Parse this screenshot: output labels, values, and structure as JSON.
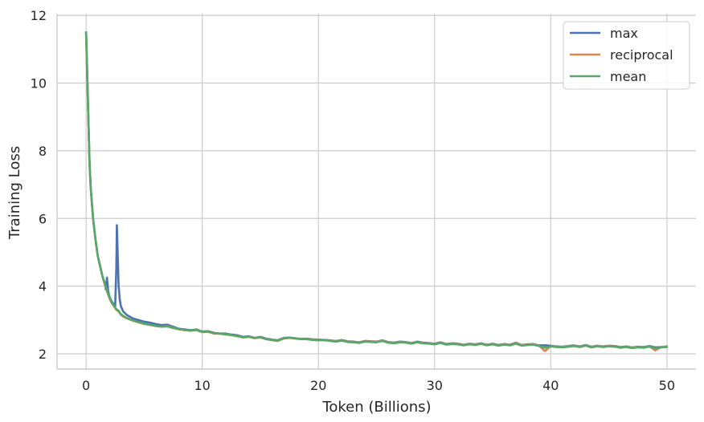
{
  "chart_data": {
    "type": "line",
    "title": "",
    "xlabel": "Token (Billions)",
    "ylabel": "Training Loss",
    "xlim": [
      -2.5,
      52.5
    ],
    "ylim": [
      1.55,
      12.05
    ],
    "xticks": [
      0,
      10,
      20,
      30,
      40,
      50
    ],
    "yticks": [
      2,
      4,
      6,
      8,
      10,
      12
    ],
    "grid": true,
    "legend_position": "top-right",
    "series": [
      {
        "name": "max",
        "color": "#4c72b0",
        "x": [
          0,
          0.1,
          0.2,
          0.3,
          0.4,
          0.6,
          0.8,
          1.0,
          1.2,
          1.4,
          1.6,
          1.7,
          1.8,
          1.9,
          2.0,
          2.2,
          2.4,
          2.5,
          2.6,
          2.65,
          2.7,
          2.8,
          2.9,
          3.0,
          3.2,
          3.5,
          4,
          4.5,
          5,
          5.5,
          6,
          6.5,
          7,
          7.5,
          8,
          8.5,
          9,
          9.5,
          10,
          10.5,
          11,
          11.5,
          12,
          12.5,
          13,
          13.5,
          14,
          14.5,
          15,
          15.5,
          16,
          16.5,
          17,
          17.5,
          18,
          18.5,
          19,
          19.5,
          20,
          20.5,
          21,
          21.5,
          22,
          22.5,
          23,
          23.5,
          24,
          24.5,
          25,
          25.5,
          26,
          26.5,
          27,
          27.5,
          28,
          28.5,
          29,
          29.5,
          30,
          30.5,
          31,
          31.5,
          32,
          32.5,
          33,
          33.5,
          34,
          34.5,
          35,
          35.5,
          36,
          36.5,
          37,
          37.5,
          38,
          38.5,
          39,
          39.5,
          40,
          40.5,
          41,
          41.5,
          42,
          42.5,
          43,
          43.5,
          44,
          44.5,
          45,
          45.5,
          46,
          46.5,
          47,
          47.5,
          48,
          48.5,
          49,
          49.5,
          50
        ],
        "y": [
          11.5,
          10.2,
          8.9,
          7.6,
          6.9,
          6.0,
          5.4,
          4.9,
          4.6,
          4.3,
          4.1,
          3.9,
          4.25,
          3.85,
          3.7,
          3.55,
          3.45,
          3.4,
          4.5,
          5.8,
          5.2,
          4.0,
          3.6,
          3.4,
          3.25,
          3.15,
          3.05,
          3.0,
          2.95,
          2.92,
          2.88,
          2.85,
          2.86,
          2.8,
          2.74,
          2.72,
          2.7,
          2.72,
          2.66,
          2.67,
          2.62,
          2.6,
          2.6,
          2.57,
          2.55,
          2.5,
          2.52,
          2.47,
          2.5,
          2.45,
          2.42,
          2.4,
          2.47,
          2.48,
          2.46,
          2.44,
          2.45,
          2.43,
          2.42,
          2.41,
          2.4,
          2.38,
          2.41,
          2.37,
          2.36,
          2.34,
          2.38,
          2.37,
          2.36,
          2.4,
          2.35,
          2.33,
          2.36,
          2.35,
          2.32,
          2.36,
          2.33,
          2.32,
          2.3,
          2.34,
          2.29,
          2.31,
          2.3,
          2.27,
          2.3,
          2.28,
          2.31,
          2.27,
          2.3,
          2.26,
          2.29,
          2.27,
          2.33,
          2.26,
          2.28,
          2.29,
          2.25,
          2.25,
          2.24,
          2.22,
          2.21,
          2.23,
          2.25,
          2.22,
          2.26,
          2.21,
          2.24,
          2.22,
          2.24,
          2.23,
          2.2,
          2.22,
          2.19,
          2.21,
          2.2,
          2.23,
          2.19,
          2.2,
          2.22
        ]
      },
      {
        "name": "reciprocal",
        "color": "#dd8452",
        "x": [
          0,
          0.1,
          0.2,
          0.3,
          0.4,
          0.6,
          0.8,
          1.0,
          1.2,
          1.4,
          1.6,
          1.8,
          2.0,
          2.2,
          2.4,
          2.6,
          2.8,
          3.0,
          3.2,
          3.5,
          4,
          4.5,
          5,
          5.5,
          6,
          6.5,
          7,
          7.5,
          8,
          8.5,
          9,
          9.5,
          10,
          10.5,
          11,
          11.5,
          12,
          12.5,
          13,
          13.5,
          14,
          14.5,
          15,
          15.5,
          16,
          16.5,
          17,
          17.5,
          18,
          18.5,
          19,
          19.5,
          20,
          20.5,
          21,
          21.5,
          22,
          22.5,
          23,
          23.5,
          24,
          24.5,
          25,
          25.5,
          26,
          26.5,
          27,
          27.5,
          28,
          28.5,
          29,
          29.5,
          30,
          30.5,
          31,
          31.5,
          32,
          32.5,
          33,
          33.5,
          34,
          34.5,
          35,
          35.5,
          36,
          36.5,
          37,
          37.5,
          38,
          38.5,
          39,
          39.5,
          40,
          40.5,
          41,
          41.5,
          42,
          42.5,
          43,
          43.5,
          44,
          44.5,
          45,
          45.5,
          46,
          46.5,
          47,
          47.5,
          48,
          48.5,
          49,
          49.5,
          50
        ],
        "y": [
          11.5,
          10.2,
          8.9,
          7.6,
          6.9,
          6.0,
          5.4,
          4.9,
          4.6,
          4.3,
          4.05,
          3.85,
          3.65,
          3.5,
          3.4,
          3.3,
          3.25,
          3.15,
          3.1,
          3.05,
          2.98,
          2.93,
          2.88,
          2.85,
          2.82,
          2.8,
          2.82,
          2.77,
          2.72,
          2.7,
          2.68,
          2.7,
          2.64,
          2.65,
          2.6,
          2.59,
          2.58,
          2.55,
          2.53,
          2.48,
          2.5,
          2.46,
          2.48,
          2.44,
          2.4,
          2.38,
          2.45,
          2.47,
          2.45,
          2.43,
          2.44,
          2.42,
          2.41,
          2.4,
          2.39,
          2.37,
          2.4,
          2.36,
          2.35,
          2.33,
          2.37,
          2.36,
          2.35,
          2.39,
          2.34,
          2.32,
          2.35,
          2.34,
          2.31,
          2.35,
          2.32,
          2.31,
          2.29,
          2.33,
          2.28,
          2.3,
          2.29,
          2.26,
          2.29,
          2.27,
          2.3,
          2.26,
          2.29,
          2.25,
          2.28,
          2.26,
          2.32,
          2.25,
          2.27,
          2.28,
          2.24,
          2.08,
          2.23,
          2.21,
          2.2,
          2.22,
          2.24,
          2.21,
          2.25,
          2.2,
          2.23,
          2.21,
          2.23,
          2.22,
          2.19,
          2.21,
          2.18,
          2.2,
          2.19,
          2.22,
          2.1,
          2.2,
          2.21
        ]
      },
      {
        "name": "mean",
        "color": "#55a868",
        "x": [
          0,
          0.1,
          0.2,
          0.3,
          0.4,
          0.6,
          0.8,
          1.0,
          1.2,
          1.4,
          1.6,
          1.8,
          2.0,
          2.2,
          2.4,
          2.6,
          2.8,
          3.0,
          3.2,
          3.5,
          4,
          4.5,
          5,
          5.5,
          6,
          6.5,
          7,
          7.5,
          8,
          8.5,
          9,
          9.5,
          10,
          10.5,
          11,
          11.5,
          12,
          12.5,
          13,
          13.5,
          14,
          14.5,
          15,
          15.5,
          16,
          16.5,
          17,
          17.5,
          18,
          18.5,
          19,
          19.5,
          20,
          20.5,
          21,
          21.5,
          22,
          22.5,
          23,
          23.5,
          24,
          24.5,
          25,
          25.5,
          26,
          26.5,
          27,
          27.5,
          28,
          28.5,
          29,
          29.5,
          30,
          30.5,
          31,
          31.5,
          32,
          32.5,
          33,
          33.5,
          34,
          34.5,
          35,
          35.5,
          36,
          36.5,
          37,
          37.5,
          38,
          38.5,
          39,
          39.5,
          40,
          40.5,
          41,
          41.5,
          42,
          42.5,
          43,
          43.5,
          44,
          44.5,
          45,
          45.5,
          46,
          46.5,
          47,
          47.5,
          48,
          48.5,
          49,
          49.5,
          50
        ],
        "y": [
          11.5,
          10.2,
          8.9,
          7.6,
          6.9,
          6.0,
          5.4,
          4.9,
          4.6,
          4.3,
          4.08,
          3.87,
          3.68,
          3.52,
          3.42,
          3.32,
          3.27,
          3.17,
          3.12,
          3.06,
          2.99,
          2.94,
          2.89,
          2.86,
          2.83,
          2.8,
          2.81,
          2.76,
          2.73,
          2.7,
          2.69,
          2.71,
          2.65,
          2.66,
          2.61,
          2.6,
          2.57,
          2.56,
          2.52,
          2.49,
          2.51,
          2.47,
          2.49,
          2.43,
          2.41,
          2.39,
          2.46,
          2.48,
          2.46,
          2.44,
          2.43,
          2.41,
          2.4,
          2.41,
          2.38,
          2.36,
          2.39,
          2.35,
          2.34,
          2.32,
          2.36,
          2.35,
          2.34,
          2.38,
          2.33,
          2.31,
          2.34,
          2.33,
          2.3,
          2.34,
          2.31,
          2.3,
          2.28,
          2.32,
          2.27,
          2.29,
          2.28,
          2.25,
          2.28,
          2.26,
          2.29,
          2.25,
          2.28,
          2.24,
          2.27,
          2.25,
          2.3,
          2.24,
          2.26,
          2.27,
          2.23,
          2.18,
          2.22,
          2.2,
          2.19,
          2.21,
          2.23,
          2.2,
          2.24,
          2.19,
          2.22,
          2.2,
          2.22,
          2.21,
          2.18,
          2.2,
          2.17,
          2.19,
          2.18,
          2.21,
          2.16,
          2.19,
          2.2
        ]
      }
    ]
  }
}
